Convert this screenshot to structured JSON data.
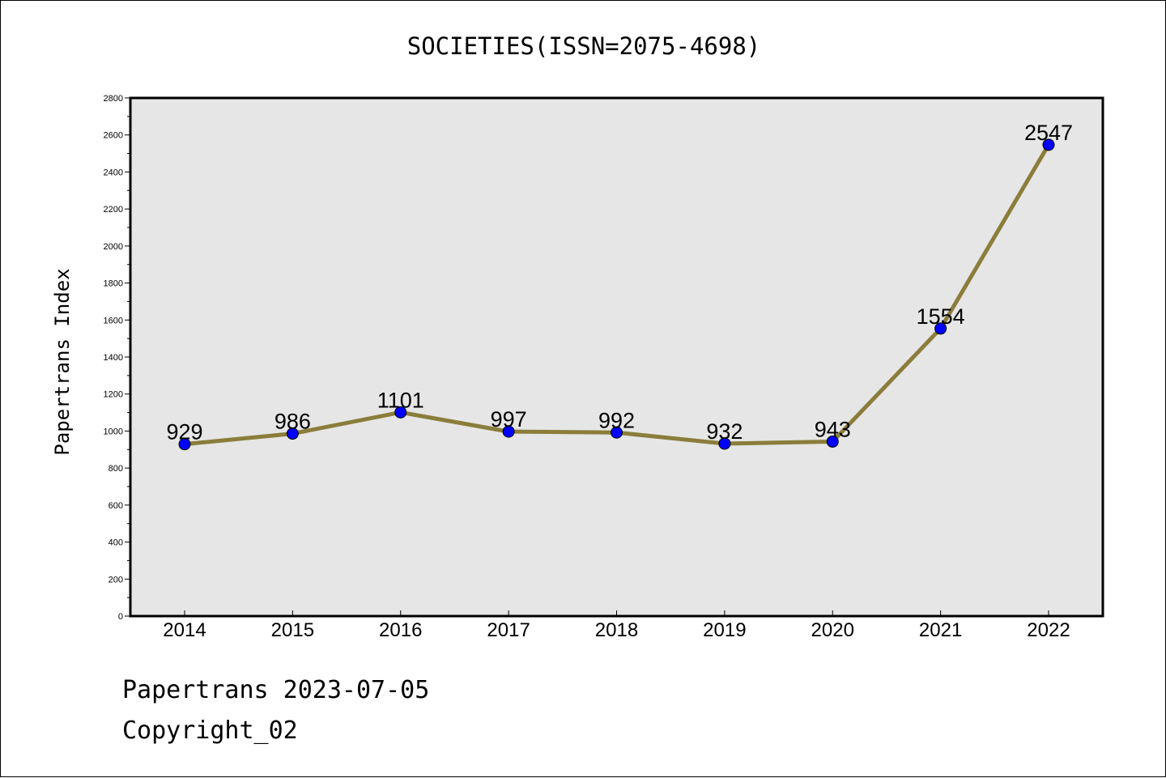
{
  "chart_data": {
    "type": "line",
    "title": "SOCIETIES(ISSN=2075-4698)",
    "xlabel": "",
    "ylabel": "Papertrans Index",
    "categories": [
      "2014",
      "2015",
      "2016",
      "2017",
      "2018",
      "2019",
      "2020",
      "2021",
      "2022"
    ],
    "values": [
      929,
      986,
      1101,
      997,
      992,
      932,
      943,
      1554,
      2547
    ],
    "data_labels": [
      "929",
      "986",
      "1101",
      "997",
      "992",
      "932",
      "943",
      "1554",
      "2547"
    ],
    "ylim": [
      0,
      2800
    ],
    "yticks": [
      "0",
      "200",
      "400",
      "600",
      "800",
      "1000",
      "1200",
      "1400",
      "1600",
      "1800",
      "2000",
      "2200",
      "2400",
      "2600",
      "2800"
    ],
    "grid": false,
    "colors": {
      "line": "#8b7d3a",
      "marker": "#0000ff",
      "plot_background": "#e6e6e6"
    }
  },
  "footer": {
    "line1": "Papertrans 2023-07-05",
    "line2": "Copyright_02"
  }
}
